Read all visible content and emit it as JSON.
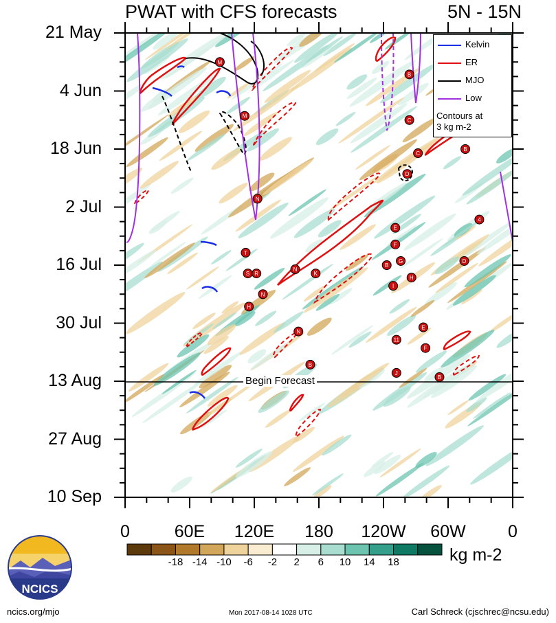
{
  "header": {
    "title": "PWAT with CFS forecasts",
    "region": "5N - 15N"
  },
  "chart_data": {
    "type": "heatmap",
    "title": "PWAT with CFS forecasts",
    "region": "5N - 15N",
    "xaxis": {
      "tick_labels": [
        "0",
        "60E",
        "120E",
        "180",
        "120W",
        "60W",
        "0"
      ],
      "range": [
        0,
        360
      ]
    },
    "yaxis": {
      "tick_labels": [
        "21 May",
        "4 Jun",
        "18 Jun",
        "2 Jul",
        "16 Jul",
        "30 Jul",
        "13 Aug",
        "27 Aug",
        "10 Sep"
      ],
      "start": "21 May",
      "end": "10 Sep"
    },
    "colorbar": {
      "units": "kg m-2",
      "tick_labels": [
        "-18",
        "-14",
        "-10",
        "-6",
        "-2",
        "2",
        "6",
        "10",
        "14",
        "18"
      ],
      "colors": [
        "#5c3a0c",
        "#8a5516",
        "#b07a2a",
        "#d3a759",
        "#efd39c",
        "#f9ecd0",
        "#ffffff",
        "#d7efe7",
        "#a8ddd0",
        "#6cc4b0",
        "#34a08c",
        "#0f7a63",
        "#07523f"
      ]
    },
    "begin_forecast_label": "Begin Forecast",
    "forecast_begin_date": "13 Aug",
    "legend": {
      "items": [
        {
          "label": "Kelvin",
          "color": "#1a2ee6"
        },
        {
          "label": "ER",
          "color": "#e01010"
        },
        {
          "label": "MJO",
          "color": "#000000"
        },
        {
          "label": "Low",
          "color": "#a030e0"
        }
      ],
      "note_line1": "Contours at",
      "note_line2": "3 kg m-2"
    },
    "storms": [
      {
        "letter": "M",
        "lon": 88,
        "day": 7
      },
      {
        "letter": "M",
        "lon": 111,
        "day": 20
      },
      {
        "letter": "N",
        "lon": 123,
        "day": 40
      },
      {
        "letter": "T",
        "lon": 112,
        "day": 53
      },
      {
        "letter": "S",
        "lon": 114,
        "day": 58
      },
      {
        "letter": "R",
        "lon": 122,
        "day": 58
      },
      {
        "letter": "N",
        "lon": 128,
        "day": 63
      },
      {
        "letter": "H",
        "lon": 115,
        "day": 66
      },
      {
        "letter": "N",
        "lon": 158,
        "day": 57
      },
      {
        "letter": "K",
        "lon": 177,
        "day": 58
      },
      {
        "letter": "N",
        "lon": 161,
        "day": 72
      },
      {
        "letter": "B",
        "lon": 172,
        "day": 80
      },
      {
        "letter": "B",
        "lon": 264,
        "day": 10
      },
      {
        "letter": "C",
        "lon": 264,
        "day": 21
      },
      {
        "letter": "C",
        "lon": 272,
        "day": 29
      },
      {
        "letter": "D",
        "lon": 262,
        "day": 34
      },
      {
        "letter": "B",
        "lon": 316,
        "day": 28
      },
      {
        "letter": "4",
        "lon": 329,
        "day": 45
      },
      {
        "letter": "E",
        "lon": 251,
        "day": 47
      },
      {
        "letter": "F",
        "lon": 251,
        "day": 51
      },
      {
        "letter": "G",
        "lon": 256,
        "day": 55
      },
      {
        "letter": "B",
        "lon": 243,
        "day": 56
      },
      {
        "letter": "H",
        "lon": 266,
        "day": 59
      },
      {
        "letter": "I",
        "lon": 249,
        "day": 61
      },
      {
        "letter": "D",
        "lon": 315,
        "day": 55
      },
      {
        "letter": "E",
        "lon": 277,
        "day": 71
      },
      {
        "letter": "11",
        "lon": 252,
        "day": 74
      },
      {
        "letter": "F",
        "lon": 279,
        "day": 76
      },
      {
        "letter": "J",
        "lon": 252,
        "day": 82
      },
      {
        "letter": "B",
        "lon": 292,
        "day": 83
      }
    ]
  },
  "footer": {
    "left": "ncics.org/mjo",
    "center": "Mon 2017-08-14 1028 UTC",
    "right": "Carl Schreck (cjschrec@ncsu.edu)",
    "logo_text": "NCICS"
  }
}
